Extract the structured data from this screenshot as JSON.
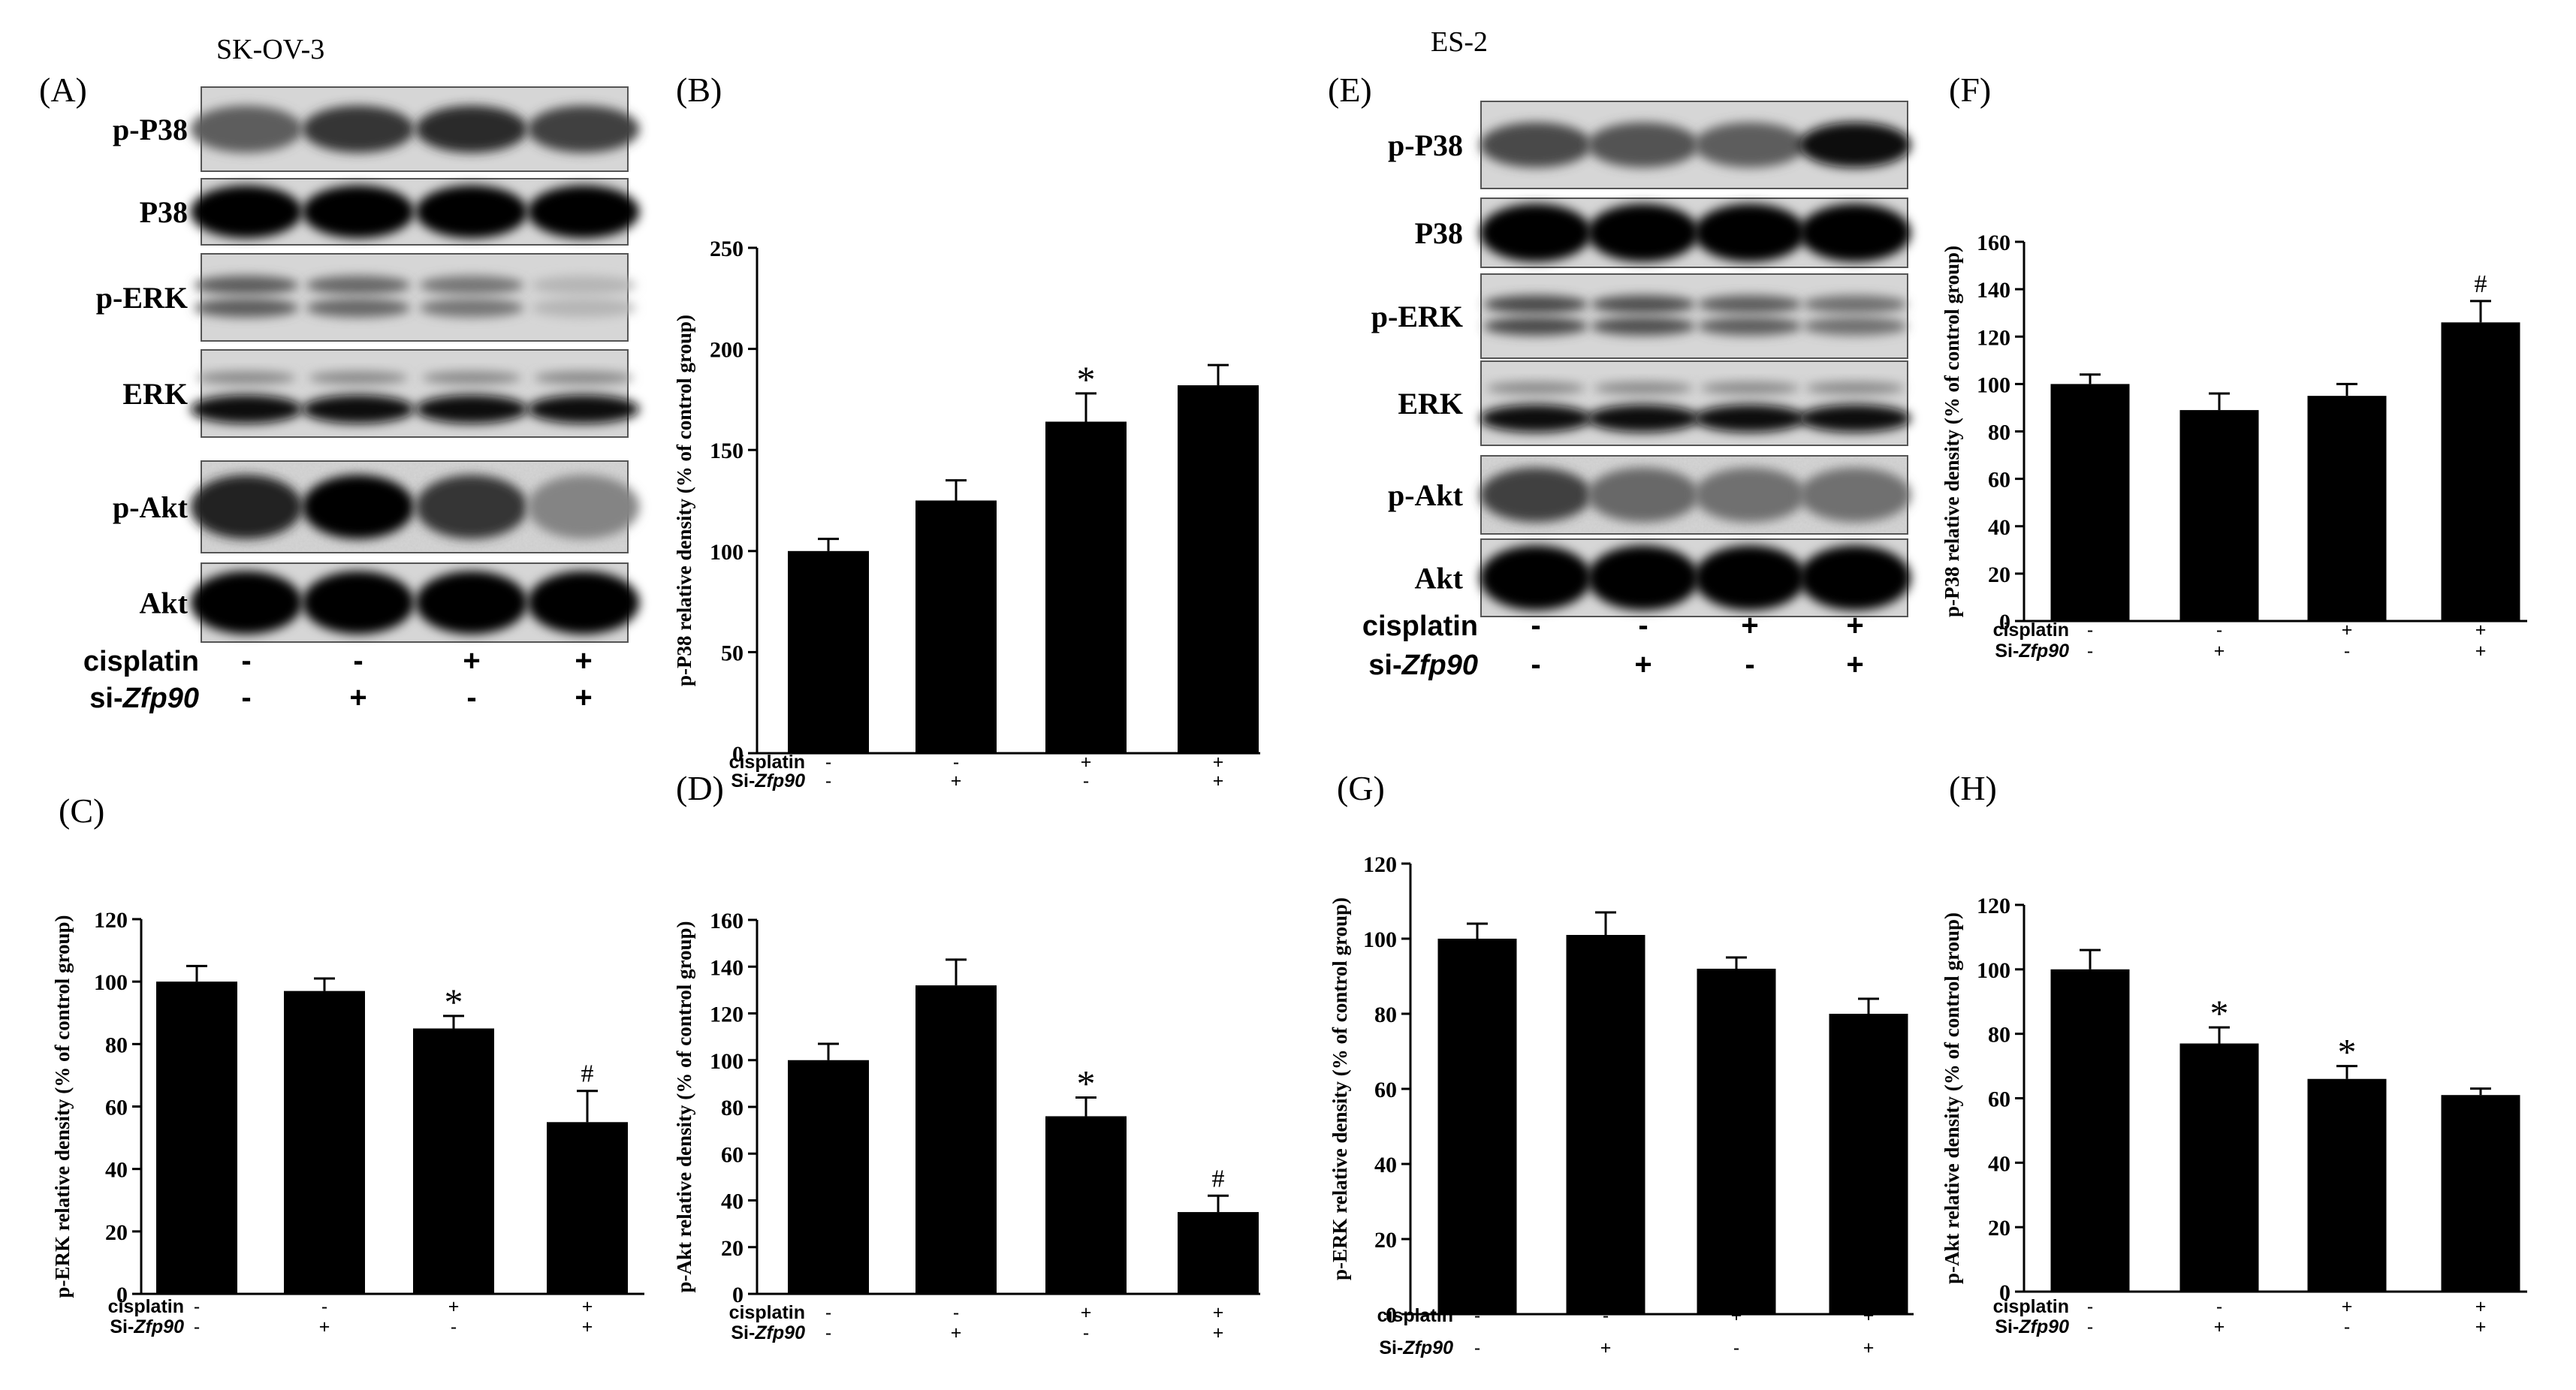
{
  "cell_lines": {
    "left": "SK-OV-3",
    "right": "ES-2"
  },
  "blot_panels": [
    {
      "letter": "(A)",
      "proteins": [
        "p-P38",
        "P38",
        "p-ERK",
        "ERK",
        "p-Akt",
        "Akt"
      ],
      "row_labels": {
        "cisplatin": "cisplatin",
        "si_prefix": "si-",
        "si_gene": "Zfp90"
      },
      "cisplatin": [
        "-",
        "-",
        "+",
        "+"
      ],
      "si": [
        "-",
        "+",
        "-",
        "+"
      ]
    },
    {
      "letter": "(E)",
      "proteins": [
        "p-P38",
        "P38",
        "p-ERK",
        "ERK",
        "p-Akt",
        "Akt"
      ],
      "row_labels": {
        "cisplatin": "cisplatin",
        "si_prefix": "si-",
        "si_gene": "Zfp90"
      },
      "cisplatin": [
        "-",
        "-",
        "+",
        "+"
      ],
      "si": [
        "-",
        "+",
        "-",
        "+"
      ]
    }
  ],
  "chart_data": [
    {
      "letter": "(B)",
      "type": "bar",
      "ylabel": "p-P38 relative density (% of control group)",
      "ylim": [
        0,
        250
      ],
      "ticks": [
        0,
        50,
        100,
        150,
        200,
        250
      ],
      "values": [
        100,
        125,
        164,
        182
      ],
      "errors": [
        6,
        10,
        14,
        10
      ],
      "marks": [
        "",
        "",
        "*",
        ""
      ],
      "row_labels": {
        "cisplatin": "cisplatin",
        "si_prefix": "Si-",
        "si_gene": "Zfp90"
      },
      "cisplatin": [
        "-",
        "-",
        "+",
        "+"
      ],
      "si": [
        "-",
        "+",
        "-",
        "+"
      ]
    },
    {
      "letter": "(C)",
      "type": "bar",
      "ylabel": "p-ERK relative density (% of control group)",
      "ylim": [
        0,
        120
      ],
      "ticks": [
        0,
        20,
        40,
        60,
        80,
        100,
        120
      ],
      "values": [
        100,
        97,
        85,
        55
      ],
      "errors": [
        5,
        4,
        4,
        10
      ],
      "marks": [
        "",
        "",
        "*",
        "#"
      ],
      "row_labels": {
        "cisplatin": "cisplatin",
        "si_prefix": "Si-",
        "si_gene": "Zfp90"
      },
      "cisplatin": [
        "-",
        "-",
        "+",
        "+"
      ],
      "si": [
        "-",
        "+",
        "-",
        "+"
      ]
    },
    {
      "letter": "(D)",
      "type": "bar",
      "ylabel": "p-Akt relative density (% of control group)",
      "ylim": [
        0,
        160
      ],
      "ticks": [
        0,
        20,
        40,
        60,
        80,
        100,
        120,
        140,
        160
      ],
      "values": [
        100,
        132,
        76,
        35
      ],
      "errors": [
        7,
        11,
        8,
        7
      ],
      "marks": [
        "",
        "",
        "*",
        "#"
      ],
      "row_labels": {
        "cisplatin": "cisplatin",
        "si_prefix": "Si-",
        "si_gene": "Zfp90"
      },
      "cisplatin": [
        "-",
        "-",
        "+",
        "+"
      ],
      "si": [
        "-",
        "+",
        "-",
        "+"
      ]
    },
    {
      "letter": "(F)",
      "type": "bar",
      "ylabel": "p-P38 relative density (% of control group)",
      "ylim": [
        0,
        160
      ],
      "ticks": [
        0,
        20,
        40,
        60,
        80,
        100,
        120,
        140,
        160
      ],
      "values": [
        100,
        89,
        95,
        126
      ],
      "errors": [
        4,
        7,
        5,
        9
      ],
      "marks": [
        "",
        "",
        "",
        "#"
      ],
      "row_labels": {
        "cisplatin": "cisplatin",
        "si_prefix": "Si-",
        "si_gene": "Zfp90"
      },
      "cisplatin": [
        "-",
        "-",
        "+",
        "+"
      ],
      "si": [
        "-",
        "+",
        "-",
        "+"
      ]
    },
    {
      "letter": "(G)",
      "type": "bar",
      "ylabel": "p-ERK relative density (% of control group)",
      "ylim": [
        0,
        120
      ],
      "ticks": [
        0,
        20,
        40,
        60,
        80,
        100,
        120
      ],
      "values": [
        100,
        101,
        92,
        80
      ],
      "errors": [
        4,
        6,
        3,
        4
      ],
      "marks": [
        "",
        "",
        "",
        ""
      ],
      "row_labels": {
        "cisplatin": "cisplatin",
        "si_prefix": "Si-",
        "si_gene": "Zfp90"
      },
      "cisplatin": [
        "-",
        "-",
        "+",
        "+"
      ],
      "si": [
        "-",
        "+",
        "-",
        "+"
      ]
    },
    {
      "letter": "(H)",
      "type": "bar",
      "ylabel": "p-Akt relative density (% of control group)",
      "ylim": [
        0,
        120
      ],
      "ticks": [
        0,
        20,
        40,
        60,
        80,
        100,
        120
      ],
      "values": [
        100,
        77,
        66,
        61
      ],
      "errors": [
        6,
        5,
        4,
        2
      ],
      "marks": [
        "",
        "*",
        "*",
        ""
      ],
      "row_labels": {
        "cisplatin": "cisplatin",
        "si_prefix": "Si-",
        "si_gene": "Zfp90"
      },
      "cisplatin": [
        "-",
        "-",
        "+",
        "+"
      ],
      "si": [
        "-",
        "+",
        "-",
        "+"
      ]
    }
  ]
}
